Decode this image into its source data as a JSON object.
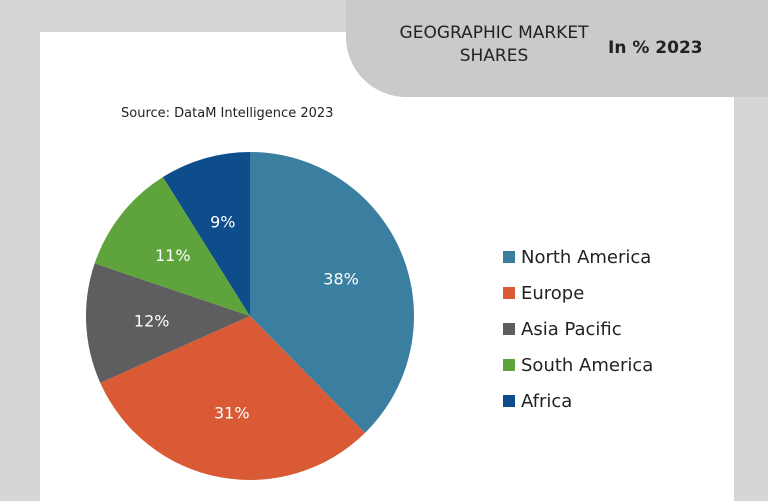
{
  "header": {
    "title": "GEOGRAPHIC MARKET SHARES",
    "subtitle": "In % 2023"
  },
  "source": "Source: DataM Intelligence 2023",
  "chart_data": {
    "type": "pie",
    "title": "GEOGRAPHIC MARKET SHARES",
    "subtitle": "In % 2023",
    "legend_position": "right",
    "slices": [
      {
        "label": "North America",
        "value": 38,
        "value_label": "38%",
        "color": "#3a7fa0"
      },
      {
        "label": "Europe",
        "value": 31,
        "value_label": "31%",
        "color": "#d95a34"
      },
      {
        "label": "Asia Pacific",
        "value": 12,
        "value_label": "12%",
        "color": "#5e5e60"
      },
      {
        "label": "South America",
        "value": 11,
        "value_label": "11%",
        "color": "#5ea33b"
      },
      {
        "label": "Africa",
        "value": 9,
        "value_label": "9%",
        "color": "#0d4d8c"
      }
    ]
  }
}
